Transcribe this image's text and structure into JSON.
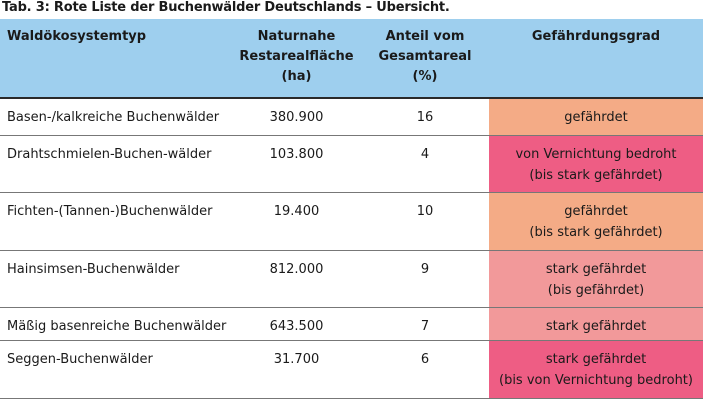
{
  "caption": "Tab. 3: Rote Liste der Buchenwälder Deutschlands – Übersicht.",
  "header": {
    "col1": "Waldökosystemtyp",
    "col2": [
      "Naturnahe",
      "Restarealfläche",
      "(ha)"
    ],
    "col3": [
      "Anteil vom",
      "Gesamtareal",
      "(%)"
    ],
    "col4": "Gefährdungsgrad"
  },
  "colors": {
    "header_bg": "#9ecfee",
    "gefaehrdet": "#f4ab86",
    "von_vernichtung_bedroht": "#ee5d84",
    "stark_gefaehrdet": "#f2999a"
  },
  "rows": [
    {
      "name": "Basen-/kalkreiche Buchenwälder",
      "area": "380.900",
      "share": "16",
      "status": [
        "gefährdet"
      ]
    },
    {
      "name": "Drahtschmielen-Buchen-wälder",
      "area": "103.800",
      "share": "4",
      "status": [
        "von Vernichtung bedroht",
        "(bis stark gefährdet)"
      ]
    },
    {
      "name": "Fichten-(Tannen-)Buchenwälder",
      "area": "19.400",
      "share": "10",
      "status": [
        "gefährdet",
        "(bis stark gefährdet)"
      ]
    },
    {
      "name": "Hainsimsen-Buchenwälder",
      "area": "812.000",
      "share": "9",
      "status": [
        "stark gefährdet",
        "(bis gefährdet)"
      ]
    },
    {
      "name": "Mäßig basenreiche Buchenwälder",
      "area": "643.500",
      "share": "7",
      "status": [
        "stark gefährdet"
      ]
    },
    {
      "name": "Seggen-Buchenwälder",
      "area": "31.700",
      "share": "6",
      "status": [
        "stark gefährdet",
        "(bis von Vernichtung bedroht)"
      ]
    }
  ]
}
